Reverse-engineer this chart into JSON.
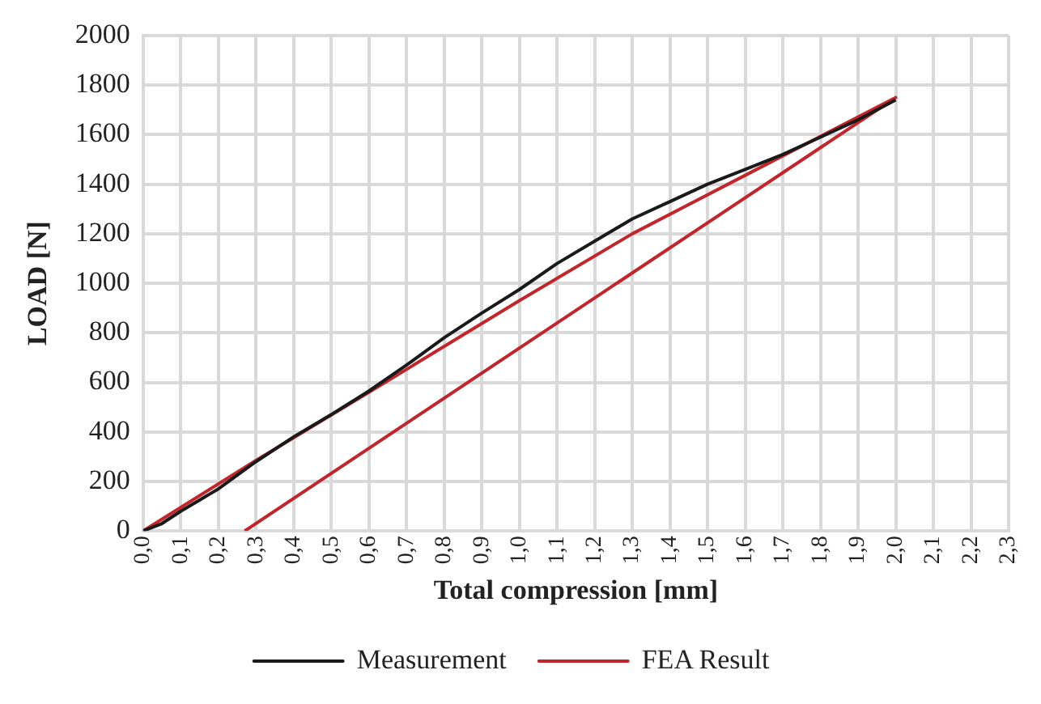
{
  "chart_data": {
    "type": "line",
    "xlabel": "Total compression [mm]",
    "ylabel": "LOAD [N]",
    "xlim": [
      0,
      2.3
    ],
    "ylim": [
      0,
      2000
    ],
    "xticks": [
      {
        "value": 0,
        "label": "0,0"
      },
      {
        "value": 0.1,
        "label": "0,1"
      },
      {
        "value": 0.2,
        "label": "0,2"
      },
      {
        "value": 0.3,
        "label": "0,3"
      },
      {
        "value": 0.4,
        "label": "0,4"
      },
      {
        "value": 0.5,
        "label": "0,5"
      },
      {
        "value": 0.6,
        "label": "0,6"
      },
      {
        "value": 0.7,
        "label": "0,7"
      },
      {
        "value": 0.8,
        "label": "0,8"
      },
      {
        "value": 0.9,
        "label": "0,9"
      },
      {
        "value": 1.0,
        "label": "1,0"
      },
      {
        "value": 1.1,
        "label": "1,1"
      },
      {
        "value": 1.2,
        "label": "1,2"
      },
      {
        "value": 1.3,
        "label": "1,3"
      },
      {
        "value": 1.4,
        "label": "1,4"
      },
      {
        "value": 1.5,
        "label": "1,5"
      },
      {
        "value": 1.6,
        "label": "1,6"
      },
      {
        "value": 1.7,
        "label": "1,7"
      },
      {
        "value": 1.8,
        "label": "1,8"
      },
      {
        "value": 1.9,
        "label": "1,9"
      },
      {
        "value": 2.0,
        "label": "2,0"
      },
      {
        "value": 2.1,
        "label": "2,1"
      },
      {
        "value": 2.2,
        "label": "2,2"
      },
      {
        "value": 2.3,
        "label": "2,3"
      }
    ],
    "yticks": [
      0,
      200,
      400,
      600,
      800,
      1000,
      1200,
      1400,
      1600,
      1800,
      2000
    ],
    "grid": true,
    "legend": "bottom",
    "marker": "none",
    "line_style": "solid",
    "series": [
      {
        "name": "Measurement",
        "color": "#1a1a1a",
        "x": [
          0,
          0.05,
          0.1,
          0.2,
          0.3,
          0.4,
          0.5,
          0.6,
          0.7,
          0.8,
          0.9,
          1.0,
          1.1,
          1.2,
          1.3,
          1.4,
          1.5,
          1.6,
          1.7,
          1.8,
          1.9,
          2.0
        ],
        "values": [
          0,
          30,
          80,
          170,
          280,
          380,
          470,
          565,
          670,
          780,
          880,
          975,
          1080,
          1170,
          1260,
          1330,
          1400,
          1460,
          1520,
          1590,
          1660,
          1740
        ]
      },
      {
        "name": "FEA Result",
        "color": "#c0272d",
        "x": [
          0,
          0.3,
          0.6,
          1.0,
          1.3,
          1.6,
          2.0,
          0.27
        ],
        "values": [
          0,
          285,
          560,
          930,
          1200,
          1436,
          1750,
          0
        ]
      }
    ]
  }
}
